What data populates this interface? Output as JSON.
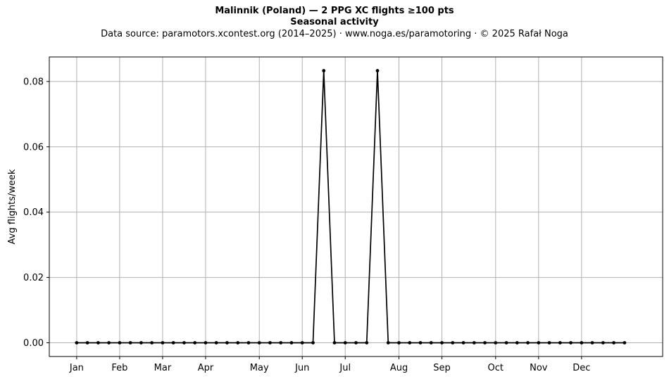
{
  "chart_data": {
    "type": "line",
    "title": "Malinnik (Poland)  —  2 PPG XC flights ≥100 pts",
    "subtitle": "Seasonal activity",
    "source_note": "Data source: paramotors.xcontest.org (2014–2025)  ·  www.noga.es/paramotoring  ·  © 2025 Rafał Noga",
    "ylabel": "Avg flights/week",
    "xlabel": "",
    "x_ticks": [
      {
        "label": "Jan",
        "week": 1
      },
      {
        "label": "Feb",
        "week": 5
      },
      {
        "label": "Mar",
        "week": 9
      },
      {
        "label": "Apr",
        "week": 13
      },
      {
        "label": "May",
        "week": 18
      },
      {
        "label": "Jun",
        "week": 22
      },
      {
        "label": "Jul",
        "week": 26
      },
      {
        "label": "Aug",
        "week": 31
      },
      {
        "label": "Sep",
        "week": 35
      },
      {
        "label": "Oct",
        "week": 40
      },
      {
        "label": "Nov",
        "week": 44
      },
      {
        "label": "Dec",
        "week": 48
      }
    ],
    "y_ticks": [
      "0.00",
      "0.02",
      "0.04",
      "0.06",
      "0.08"
    ],
    "xlim": [
      -1.55,
      55.55
    ],
    "ylim": [
      -0.0042,
      0.0875
    ],
    "grid": true,
    "color": "#000000",
    "x": [
      1,
      2,
      3,
      4,
      5,
      6,
      7,
      8,
      9,
      10,
      11,
      12,
      13,
      14,
      15,
      16,
      17,
      18,
      19,
      20,
      21,
      22,
      23,
      24,
      25,
      26,
      27,
      28,
      29,
      30,
      31,
      32,
      33,
      34,
      35,
      36,
      37,
      38,
      39,
      40,
      41,
      42,
      43,
      44,
      45,
      46,
      47,
      48,
      49,
      50,
      51,
      52
    ],
    "values": [
      0,
      0,
      0,
      0,
      0,
      0,
      0,
      0,
      0,
      0,
      0,
      0,
      0,
      0,
      0,
      0,
      0,
      0,
      0,
      0,
      0,
      0,
      0,
      0.0833,
      0,
      0,
      0,
      0,
      0.0833,
      0,
      0,
      0,
      0,
      0,
      0,
      0,
      0,
      0,
      0,
      0,
      0,
      0,
      0,
      0,
      0,
      0,
      0,
      0,
      0,
      0,
      0,
      0
    ]
  }
}
